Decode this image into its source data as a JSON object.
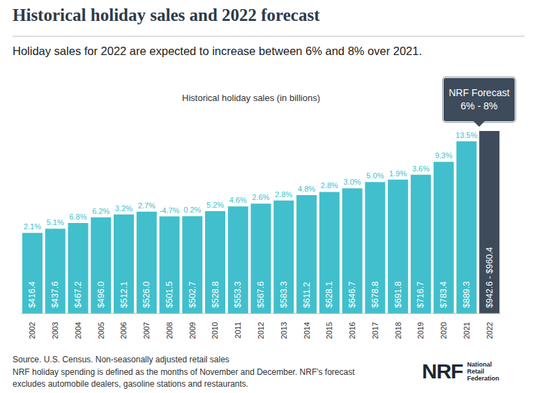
{
  "chart_data": {
    "type": "bar",
    "title": "Historical holiday sales and 2022 forecast",
    "subtitle": "Holiday sales for 2022 are expected to increase between 6% and 8% over 2021.",
    "chart_label": "Historical holiday sales (in billions)",
    "categories": [
      "2002",
      "2003",
      "2004",
      "2005",
      "2006",
      "2007",
      "2008",
      "2009",
      "2010",
      "2011",
      "2012",
      "2013",
      "2014",
      "2015",
      "2016",
      "2017",
      "2018",
      "2019",
      "2020",
      "2021",
      "2022"
    ],
    "values": [
      416.4,
      437.6,
      467.2,
      496.0,
      512.1,
      526.0,
      501.5,
      502.7,
      528.8,
      553.3,
      567.6,
      583.3,
      611.2,
      628.1,
      646.7,
      678.8,
      691.8,
      716.7,
      783.4,
      889.3,
      942.6
    ],
    "value_labels": [
      "$416.4",
      "$437.6",
      "$467.2",
      "$496.0",
      "$512.1",
      "$526.0",
      "$501.5",
      "$502.7",
      "$528.8",
      "$553.3",
      "$567.6",
      "$583.3",
      "$611.2",
      "$628.1",
      "$646.7",
      "$678.8",
      "$691.8",
      "$716.7",
      "$783.4",
      "$889.3",
      "$942.6 - $960.4"
    ],
    "growth": [
      2.1,
      5.1,
      6.8,
      6.2,
      3.2,
      2.7,
      -4.7,
      0.2,
      5.2,
      4.6,
      2.6,
      2.8,
      4.8,
      2.8,
      3.0,
      5.0,
      1.9,
      3.6,
      9.3,
      13.5,
      null
    ],
    "growth_labels": [
      "2.1%",
      "5.1%",
      "6.8%",
      "6.2%",
      "3.2%",
      "2.7%",
      "-4.7%",
      "0.2%",
      "5.2%",
      "4.6%",
      "2.6%",
      "2.8%",
      "4.8%",
      "2.8%",
      "3.0%",
      "5.0%",
      "1.9%",
      "3.6%",
      "9.3%",
      "13.5%",
      null
    ],
    "colors": [
      "#41bfcc",
      "#41bfcc",
      "#41bfcc",
      "#41bfcc",
      "#41bfcc",
      "#41bfcc",
      "#41bfcc",
      "#41bfcc",
      "#41bfcc",
      "#41bfcc",
      "#41bfcc",
      "#41bfcc",
      "#41bfcc",
      "#41bfcc",
      "#41bfcc",
      "#41bfcc",
      "#41bfcc",
      "#41bfcc",
      "#41bfcc",
      "#41bfcc",
      "#3e4b5b"
    ],
    "ylim": [
      0,
      1000
    ],
    "tick_labels": "x",
    "data_labels": true,
    "annotation": {
      "title": "NRF Forecast",
      "text": "6% - 8%"
    },
    "notes": [
      "Source. U.S. Census. Non-seasonally adjusted retail sales",
      "NRF holiday spending is defined as the months of November and December. NRF's forecast",
      "excludes automobile dealers, gasoline stations and restaurants."
    ],
    "logo": {
      "mark": "NRF",
      "text": [
        "National",
        "Retail",
        "Federation"
      ]
    }
  }
}
